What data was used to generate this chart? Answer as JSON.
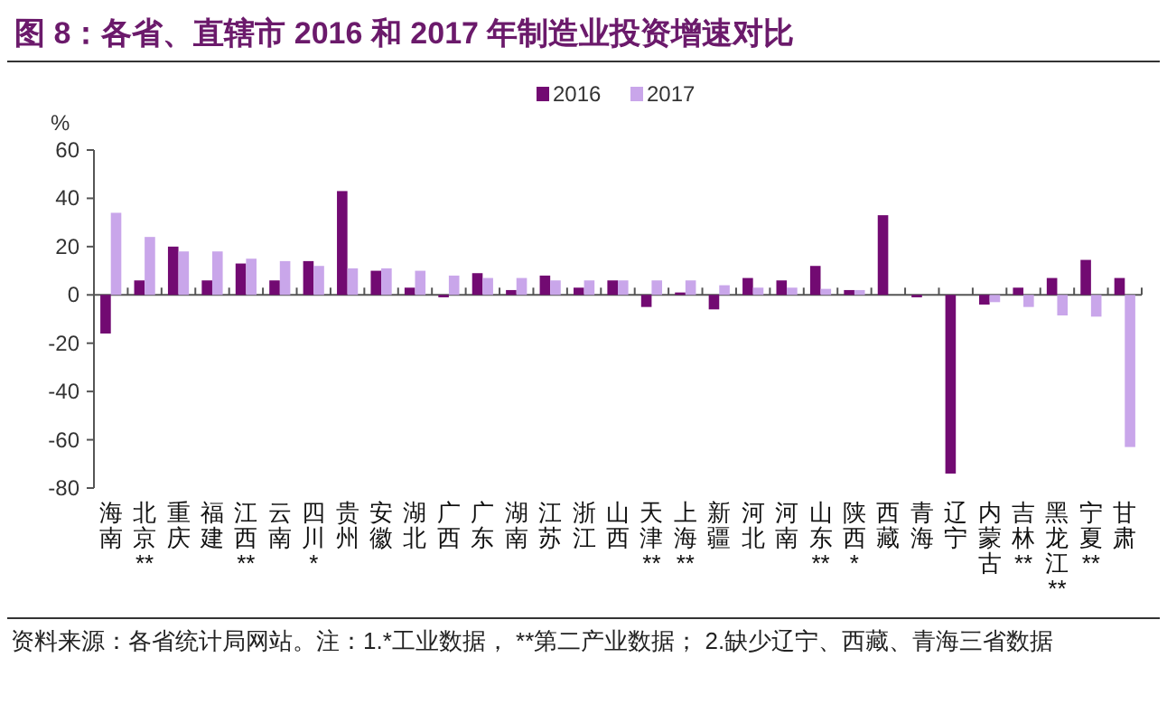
{
  "chart_data": {
    "type": "bar",
    "title": "图 8：各省、直辖市 2016 和 2017 年制造业投资增速对比",
    "ylabel": "%",
    "categories": [
      "海南",
      "北京**",
      "重庆",
      "福建",
      "江西**",
      "云南",
      "四川*",
      "贵州",
      "安徽",
      "湖北",
      "广西",
      "广东",
      "湖南",
      "江苏",
      "浙江",
      "山西",
      "天津**",
      "上海**",
      "新疆",
      "河北",
      "河南",
      "山东**",
      "陕西*",
      "西藏",
      "青海",
      "辽宁",
      "内蒙古",
      "吉林**",
      "黑龙江**",
      "宁夏**",
      "甘肃"
    ],
    "series": [
      {
        "name": "2016",
        "color": "#720a72",
        "values": [
          -16,
          6,
          20,
          6,
          13,
          6,
          14,
          43,
          10,
          3,
          -1,
          9,
          2,
          8,
          3,
          6,
          -5,
          1,
          -6,
          7,
          6,
          12,
          2,
          33,
          -1,
          -74,
          -4,
          3,
          7,
          14.5,
          7
        ]
      },
      {
        "name": "2017",
        "color": "#c9a6ea",
        "values": [
          34,
          24,
          18,
          18,
          15,
          14,
          12,
          11,
          11,
          10,
          8,
          7,
          7,
          6,
          6,
          6,
          6,
          6,
          4,
          3,
          3,
          2.5,
          2,
          null,
          null,
          null,
          -3,
          -5,
          -8.5,
          -9,
          -63
        ]
      }
    ],
    "ylim": [
      -80,
      60
    ],
    "yticks": [
      -80,
      -60,
      -40,
      -20,
      0,
      20,
      40,
      60
    ],
    "legend": "top",
    "annotations": [
      "资料来源：各省统计局网站。注：1.*工业数据，  **第二产业数据； 2.缺少辽宁、西藏、青海三省数据"
    ]
  }
}
